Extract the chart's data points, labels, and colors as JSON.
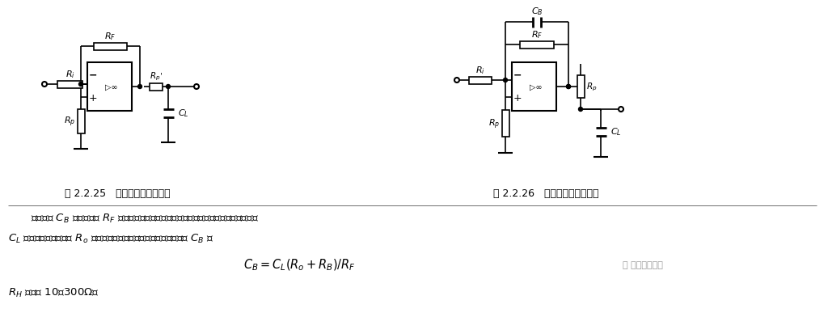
{
  "bg_color": "#ffffff",
  "fig_width": 10.24,
  "fig_height": 4.14,
  "dpi": 100,
  "caption1": "图 2.2.25   小容性负载补偿电路",
  "caption2": "图 2.2.26   大容性负载补偿电路",
  "text1": "补偿电容 $C_B$ 与反馈电阻 $R_F$ 构成超前补偿网络，形成新的零点。新的零点抵消容性负载",
  "text2": "$C_L$ 与集成运放输出电阻 $R_o$ 构成的新极点，从而消除自激。补偿电容 $C_B$ 为",
  "formula": "$C_B=C_L(R_o+R_B)/R_F$",
  "text3": "$R_H$ 取值为 10～300Ω。",
  "watermark": "电子工程专辑"
}
